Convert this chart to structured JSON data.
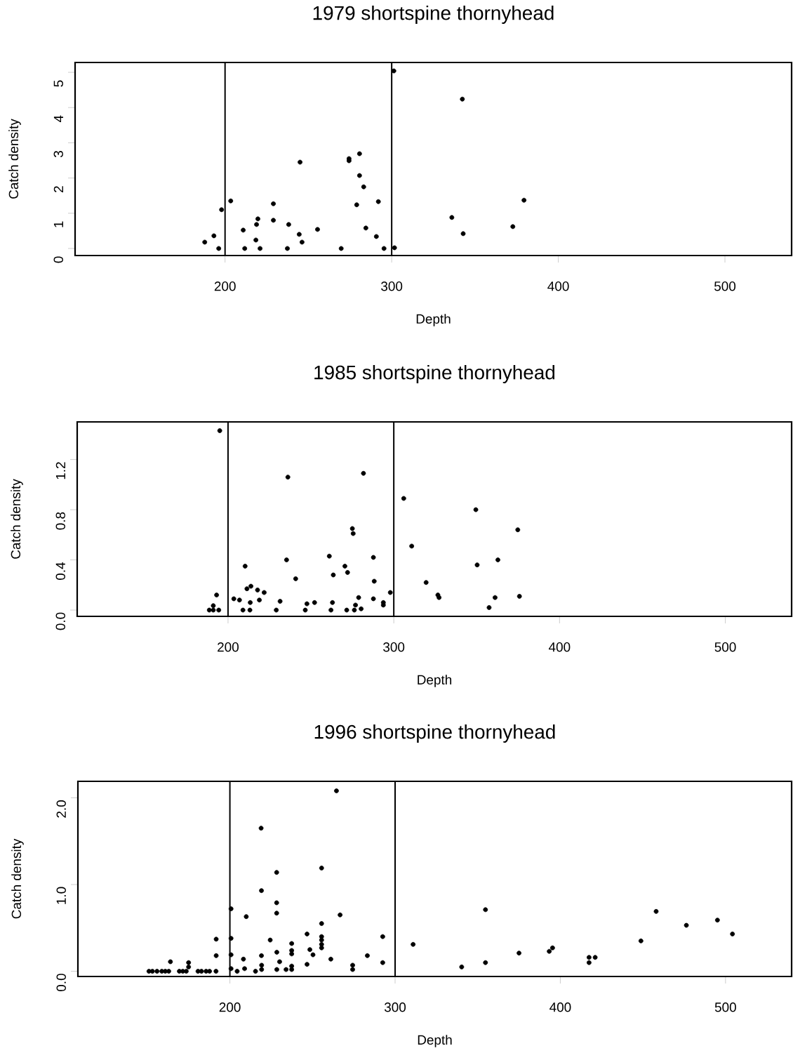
{
  "chart_data": [
    {
      "type": "scatter",
      "title": "1979 shortspine thornyhead",
      "xlabel": "Depth",
      "ylabel": "Catch density",
      "color": "#000000",
      "marker": "circle",
      "x": [
        187.8,
        193.3,
        197.9,
        196.2,
        203.4,
        210.9,
        211.8,
        218.5,
        218.9,
        219.7,
        221,
        229,
        229,
        237.4,
        238.2,
        244.5,
        245,
        246.2,
        255.5,
        269.7,
        274.4,
        274.4,
        280.7,
        280.7,
        279,
        283.2,
        284.5,
        290.8,
        292,
        295.4,
        301.3,
        301.7,
        336.1,
        342.4,
        342.9,
        372.7,
        379.4
      ],
      "values": [
        0.18,
        0.36,
        1.1,
        0,
        1.35,
        0.52,
        0,
        0.24,
        0.68,
        0.84,
        0,
        1.27,
        0.8,
        0,
        0.68,
        0.4,
        2.45,
        0.18,
        0.54,
        0,
        2.49,
        2.55,
        2.69,
        2.07,
        1.24,
        1.75,
        0.58,
        0.34,
        1.33,
        0,
        5.04,
        0.02,
        0.88,
        4.24,
        0.42,
        0.62,
        1.37
      ],
      "xlim": [
        110,
        540
      ],
      "ylim": [
        -0.2,
        5.28
      ],
      "xticks": [
        200,
        300,
        400,
        500
      ],
      "yticks": [
        0,
        1,
        2,
        3,
        4,
        5
      ],
      "ref_lines": [
        {
          "axis": "x",
          "value": 200,
          "color": "#000000"
        },
        {
          "axis": "x",
          "value": 300,
          "color": "#000000"
        }
      ]
    },
    {
      "type": "scatter",
      "title": "1985 shortspine thornyhead",
      "xlabel": "Depth",
      "ylabel": "Catch density",
      "color": "#000000",
      "marker": "circle",
      "x": [
        195.0,
        193.1,
        191.1,
        188.7,
        191.1,
        194.4,
        203.5,
        206.9,
        209,
        210.3,
        211.4,
        213.8,
        213.4,
        213.2,
        217.8,
        218.9,
        221.8,
        229.1,
        231.4,
        235.3,
        236.1,
        240.8,
        246.6,
        247.6,
        252.2,
        261.1,
        262.1,
        263,
        263.5,
        270.5,
        272.1,
        271.6,
        275,
        275.5,
        276.2,
        276.9,
        278.8,
        280.3,
        281.7,
        287.7,
        288.2,
        287.7,
        293.7,
        293.7,
        297.9,
        306,
        310.8,
        319.5,
        326.6,
        327.3,
        349.5,
        350.3,
        357.5,
        361.1,
        362.8,
        374.8,
        375.8
      ],
      "values": [
        1.43,
        0.12,
        0.035,
        0,
        0,
        0,
        0.09,
        0.08,
        0,
        0.35,
        0.17,
        0.19,
        0.06,
        0,
        0.16,
        0.08,
        0.14,
        0,
        0.07,
        0.4,
        1.06,
        0.25,
        0,
        0.05,
        0.06,
        0.43,
        0,
        0.06,
        0.28,
        0.35,
        0.3,
        0,
        0.65,
        0.61,
        0,
        0.04,
        0.1,
        0.01,
        1.09,
        0.42,
        0.23,
        0.09,
        0.06,
        0.04,
        0.14,
        0.89,
        0.51,
        0.22,
        0.12,
        0.1,
        0.8,
        0.36,
        0.02,
        0.1,
        0.4,
        0.64,
        0.11
      ],
      "xlim": [
        109,
        540
      ],
      "ylim": [
        -0.05,
        1.5
      ],
      "xticks": [
        200,
        300,
        400,
        500
      ],
      "yticks": [
        {
          "value": 0,
          "label": "0.0"
        },
        {
          "value": 0.4,
          "label": "0.4"
        },
        {
          "value": 0.8,
          "label": "0.8"
        },
        {
          "value": 1.2,
          "label": "1.2"
        }
      ],
      "ref_lines": [
        {
          "axis": "x",
          "value": 200,
          "color": "#000000"
        },
        {
          "axis": "x",
          "value": 300,
          "color": "#000000"
        }
      ]
    },
    {
      "type": "scatter",
      "title": "1996 shortspine thornyhead",
      "xlabel": "Depth",
      "ylabel": "Catch density",
      "color": "#000000",
      "marker": "circle",
      "x": [
        151,
        153.1,
        155.9,
        158.8,
        160.9,
        163,
        169.4,
        171.5,
        173.6,
        180.7,
        182.8,
        185.6,
        187.7,
        191.6,
        164,
        175,
        175,
        191.7,
        191.7,
        200.7,
        200.7,
        200.7,
        200.7,
        204.4,
        208.2,
        209.9,
        208.9,
        215.5,
        218.9,
        219.1,
        219.1,
        219.2,
        219.2,
        224.4,
        228.3,
        228.3,
        228.3,
        228.4,
        230.1,
        228.4,
        234,
        237.4,
        237.4,
        237.4,
        237.4,
        237.4,
        246.7,
        246.7,
        248.4,
        250.3,
        255.5,
        255.5,
        255.5,
        255.5,
        255.5,
        255.5,
        261.1,
        264.5,
        266.7,
        274.3,
        274.3,
        283.2,
        292.5,
        292.5,
        310.9,
        340.3,
        354.7,
        354.7,
        375,
        393.3,
        395.3,
        417.4,
        417.4,
        421.1,
        448.8,
        458,
        476.3,
        495.1,
        504.2
      ],
      "values": [
        0,
        0,
        0,
        0,
        0,
        0,
        0,
        0,
        0,
        0,
        0,
        0,
        0,
        0,
        0.11,
        0.1,
        0.05,
        0.37,
        0.18,
        0.72,
        0.38,
        0.19,
        0.03,
        0,
        0.14,
        0.63,
        0.03,
        0,
        1.65,
        0.93,
        0.18,
        0.07,
        0.02,
        0.36,
        1.14,
        0.79,
        0.67,
        0.22,
        0.11,
        0.02,
        0.02,
        0.32,
        0.24,
        0.2,
        0.06,
        0.02,
        0.43,
        0.08,
        0.25,
        0.19,
        1.19,
        0.55,
        0.4,
        0.36,
        0.31,
        0.27,
        0.14,
        2.08,
        0.65,
        0.07,
        0.02,
        0.18,
        0.4,
        0.1,
        0.31,
        0.05,
        0.71,
        0.1,
        0.21,
        0.23,
        0.27,
        0.16,
        0.1,
        0.16,
        0.35,
        0.69,
        0.53,
        0.59,
        0.43
      ],
      "xlim": [
        108,
        540
      ],
      "ylim": [
        -0.06,
        2.19
      ],
      "xticks": [
        200,
        300,
        400,
        500
      ],
      "yticks": [
        {
          "value": 0,
          "label": "0.0"
        },
        {
          "value": 1,
          "label": "1.0"
        },
        {
          "value": 2,
          "label": "2.0"
        }
      ],
      "ref_lines": [
        {
          "axis": "x",
          "value": 200,
          "color": "#000000"
        },
        {
          "axis": "x",
          "value": 300,
          "color": "#000000"
        }
      ]
    }
  ]
}
